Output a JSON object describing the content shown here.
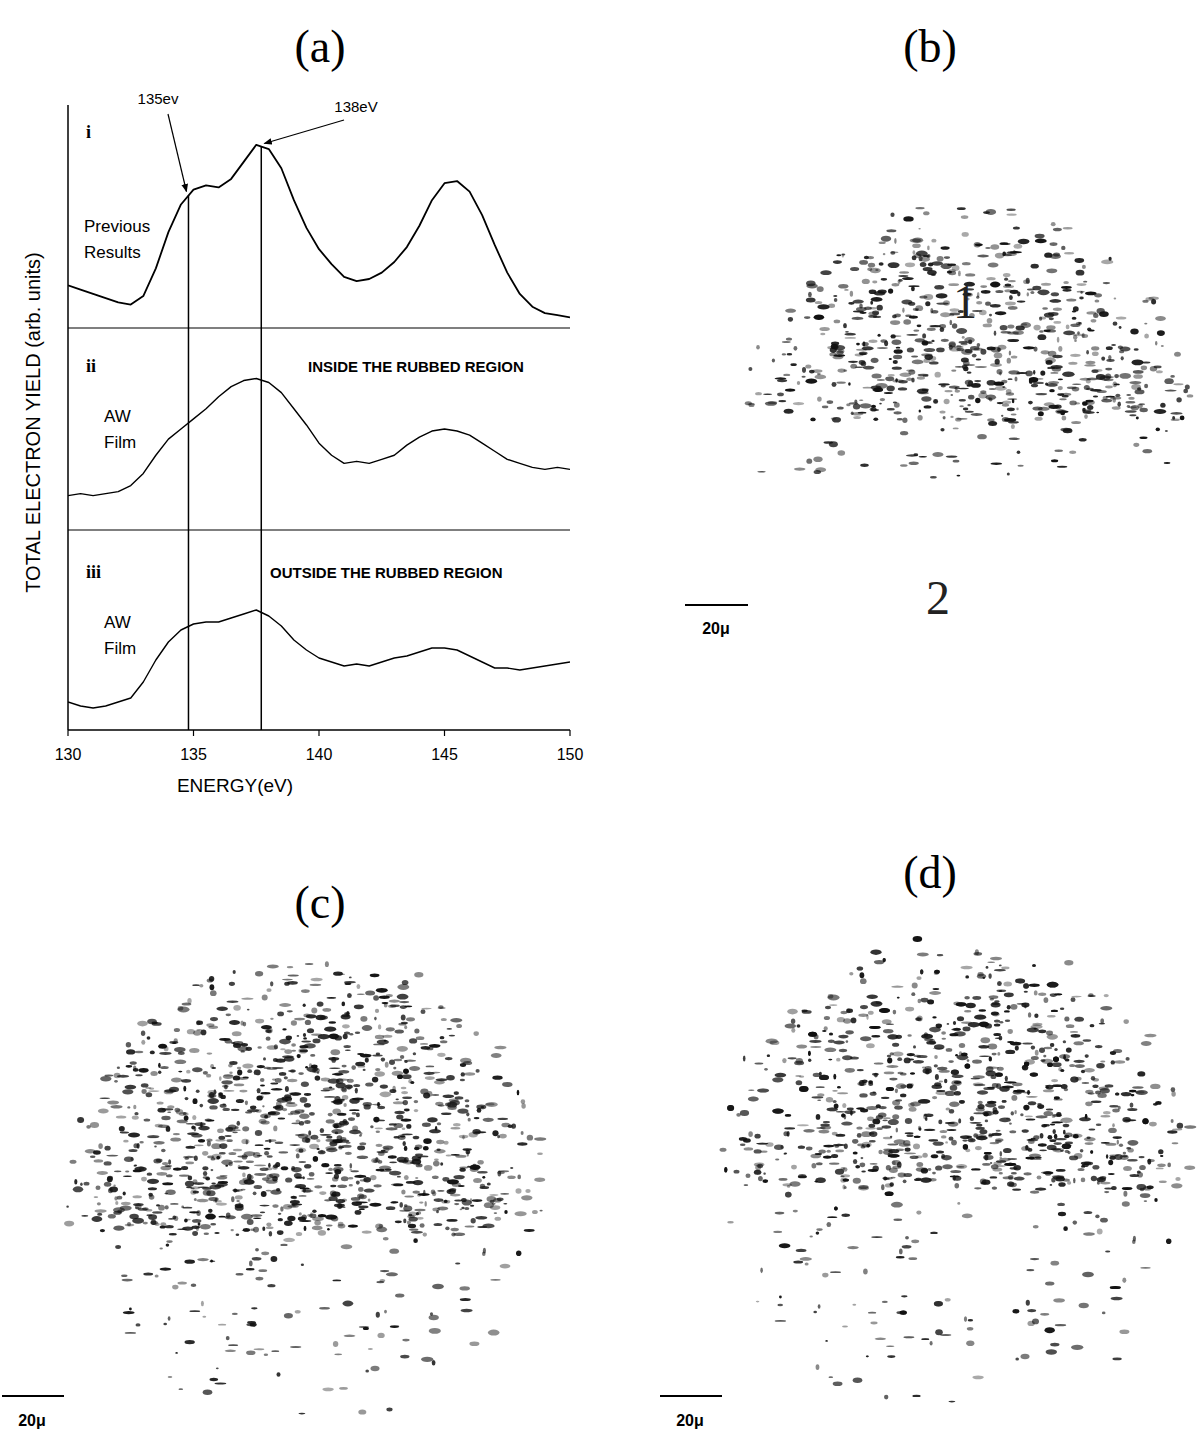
{
  "chart_data": [
    {
      "type": "line",
      "panel_label": "(a)",
      "x_label": "ENERGY(eV)",
      "y_label": "TOTAL ELECTRON YIELD (arb. units)",
      "xlim": [
        130,
        150
      ],
      "xticks": [
        130,
        135,
        140,
        145,
        150
      ],
      "ylim": [
        0,
        1
      ],
      "tick_labels": "x",
      "x": [
        130,
        130.5,
        131,
        131.5,
        132,
        132.5,
        133,
        133.5,
        134,
        134.5,
        135,
        135.5,
        136,
        136.5,
        137,
        137.5,
        138,
        138.5,
        139,
        139.5,
        140,
        140.5,
        141,
        141.5,
        142,
        142.5,
        143,
        143.5,
        144,
        144.5,
        145,
        145.5,
        146,
        146.5,
        147,
        147.5,
        148,
        148.5,
        149,
        149.5,
        150
      ],
      "annotations": [
        {
          "x": 134.8,
          "text": "135ev"
        },
        {
          "x": 137.7,
          "text": "138eV"
        }
      ],
      "series": [
        {
          "subplot": "i",
          "name": "Previous Results",
          "color": "#000000",
          "values": [
            0.2,
            0.18,
            0.16,
            0.14,
            0.12,
            0.11,
            0.15,
            0.28,
            0.45,
            0.58,
            0.65,
            0.67,
            0.66,
            0.7,
            0.78,
            0.86,
            0.84,
            0.75,
            0.6,
            0.47,
            0.37,
            0.3,
            0.24,
            0.22,
            0.23,
            0.26,
            0.31,
            0.38,
            0.48,
            0.6,
            0.68,
            0.69,
            0.64,
            0.53,
            0.39,
            0.26,
            0.16,
            0.1,
            0.07,
            0.06,
            0.05
          ]
        },
        {
          "subplot": "ii",
          "name": "AW Film",
          "region": "INSIDE THE RUBBED REGION",
          "color": "#000000",
          "values": [
            0.17,
            0.18,
            0.17,
            0.18,
            0.19,
            0.22,
            0.28,
            0.37,
            0.45,
            0.5,
            0.55,
            0.6,
            0.66,
            0.71,
            0.74,
            0.75,
            0.73,
            0.68,
            0.6,
            0.52,
            0.43,
            0.37,
            0.33,
            0.34,
            0.33,
            0.35,
            0.37,
            0.42,
            0.46,
            0.49,
            0.5,
            0.49,
            0.47,
            0.43,
            0.39,
            0.35,
            0.33,
            0.31,
            0.3,
            0.31,
            0.3
          ]
        },
        {
          "subplot": "iii",
          "name": "AW Film",
          "region": "OUTSIDE THE RUBBED REGION",
          "color": "#000000",
          "values": [
            0.14,
            0.12,
            0.11,
            0.12,
            0.14,
            0.16,
            0.24,
            0.35,
            0.44,
            0.5,
            0.53,
            0.54,
            0.54,
            0.56,
            0.58,
            0.6,
            0.57,
            0.52,
            0.45,
            0.4,
            0.36,
            0.34,
            0.32,
            0.33,
            0.32,
            0.34,
            0.36,
            0.37,
            0.39,
            0.41,
            0.41,
            0.4,
            0.37,
            0.34,
            0.31,
            0.31,
            0.3,
            0.31,
            0.32,
            0.33,
            0.34
          ]
        }
      ]
    },
    {
      "type": "image",
      "panel_label": "(b)",
      "labels": [
        "1",
        "2"
      ],
      "scale_bar": "20μ"
    },
    {
      "type": "image",
      "panel_label": "(c)",
      "scale_bar": "20μ"
    },
    {
      "type": "image",
      "panel_label": "(d)",
      "scale_bar": "20μ"
    }
  ]
}
